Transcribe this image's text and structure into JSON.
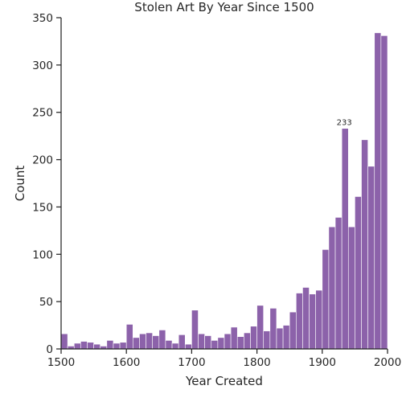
{
  "chart_data": {
    "type": "bar",
    "title": "Stolen Art By Year Since 1500",
    "xlabel": "Year Created",
    "ylabel": "Count",
    "xlim": [
      1500,
      2000
    ],
    "ylim": [
      0,
      350
    ],
    "bin_width": 10,
    "bin_starts": [
      1500,
      1510,
      1520,
      1530,
      1540,
      1550,
      1560,
      1570,
      1580,
      1590,
      1600,
      1610,
      1620,
      1630,
      1640,
      1650,
      1660,
      1670,
      1680,
      1690,
      1700,
      1710,
      1720,
      1730,
      1740,
      1750,
      1760,
      1770,
      1780,
      1790,
      1800,
      1810,
      1820,
      1830,
      1840,
      1850,
      1860,
      1870,
      1880,
      1890,
      1900,
      1910,
      1920,
      1930,
      1940,
      1950,
      1960,
      1970,
      1980,
      1990
    ],
    "values": [
      16,
      3,
      6,
      8,
      7,
      5,
      3,
      9,
      6,
      7,
      26,
      12,
      16,
      17,
      14,
      20,
      9,
      6,
      15,
      5,
      41,
      16,
      14,
      9,
      12,
      16,
      23,
      13,
      17,
      24,
      46,
      19,
      43,
      22,
      25,
      39,
      59,
      65,
      58,
      62,
      105,
      129,
      139,
      233,
      129,
      161,
      221,
      193,
      334,
      331
    ],
    "annotation": {
      "x": 1935,
      "y": 233,
      "text": "233"
    },
    "xticks": [
      "1500",
      "1600",
      "1700",
      "1800",
      "1900",
      "2000"
    ],
    "yticks": [
      "0",
      "50",
      "100",
      "150",
      "200",
      "250",
      "300",
      "350"
    ],
    "grid": false,
    "bar_color": "#8c62aa"
  }
}
